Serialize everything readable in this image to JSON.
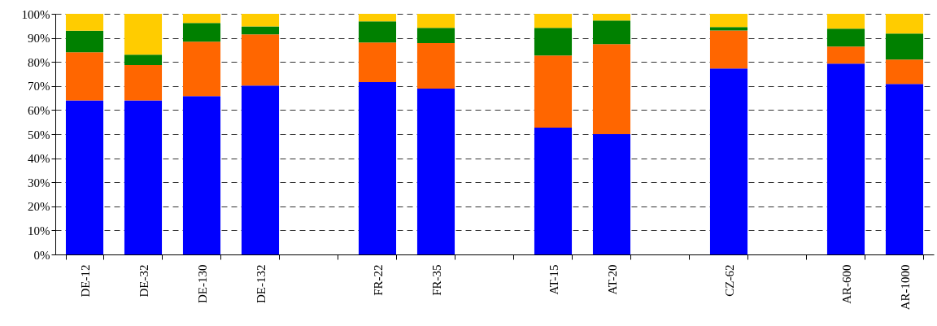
{
  "chart_data": {
    "type": "bar",
    "stacked": true,
    "categories": [
      "DE-12",
      "DE-32",
      "DE-130",
      "DE-132",
      null,
      "FR-22",
      "FR-35",
      null,
      "AT-15",
      "AT-20",
      null,
      "CZ-62",
      null,
      "AR-600",
      "AR-1000"
    ],
    "series": [
      {
        "color": "#0000ff",
        "values": [
          64,
          64,
          65.8,
          70.2,
          null,
          71.6,
          68.9,
          null,
          52.7,
          50,
          null,
          77.3,
          null,
          79.3,
          70.9
        ]
      },
      {
        "color": "#ff6600",
        "values": [
          20,
          14.7,
          22.6,
          21.3,
          null,
          16.5,
          18.9,
          null,
          30,
          37.4,
          null,
          15.8,
          null,
          7.1,
          10.1
        ]
      },
      {
        "color": "#008000",
        "values": [
          9,
          4.3,
          7.8,
          3.3,
          null,
          8.8,
          6.4,
          null,
          11.5,
          9.8,
          null,
          1.4,
          null,
          7.4,
          10.8
        ]
      },
      {
        "color": "#ffcc00",
        "values": [
          7,
          17,
          3.8,
          5.2,
          null,
          3.1,
          5.8,
          null,
          5.8,
          2.8,
          null,
          5.5,
          null,
          6.2,
          8.2
        ]
      }
    ],
    "ylim": [
      0,
      100
    ],
    "yticks": [
      {
        "value": 0,
        "label": "0%"
      },
      {
        "value": 10,
        "label": "10%"
      },
      {
        "value": 20,
        "label": "20%"
      },
      {
        "value": 30,
        "label": "30%"
      },
      {
        "value": 40,
        "label": "40%"
      },
      {
        "value": 50,
        "label": "50%"
      },
      {
        "value": 60,
        "label": "60%"
      },
      {
        "value": 70,
        "label": "70%"
      },
      {
        "value": 80,
        "label": "80%"
      },
      {
        "value": 90,
        "label": "90%"
      },
      {
        "value": 100,
        "label": "100%"
      }
    ],
    "grid": "y"
  }
}
